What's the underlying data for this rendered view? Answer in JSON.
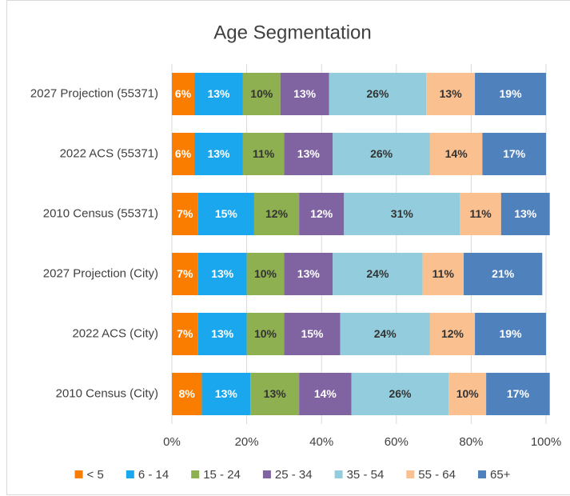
{
  "chart_data": {
    "type": "stacked-bar-horizontal",
    "title": "Age Segmentation",
    "categories": [
      "2027 Projection (55371)",
      "2022 ACS (55371)",
      "2010 Census (55371)",
      "2027 Projection (City)",
      "2022 ACS (City)",
      "2010 Census (City)"
    ],
    "series": [
      {
        "name": "< 5",
        "color": "#fa7d00",
        "label_color": "#ffffff",
        "values": [
          6,
          6,
          7,
          7,
          7,
          8
        ],
        "value_labels": [
          "6%",
          "6%",
          "7%",
          "7%",
          "7%",
          "8%"
        ]
      },
      {
        "name": "6 - 14",
        "color": "#1aa7ee",
        "label_color": "#ffffff",
        "values": [
          13,
          13,
          15,
          13,
          13,
          13
        ],
        "value_labels": [
          "13%",
          "13%",
          "15%",
          "13%",
          "13%",
          "13%"
        ]
      },
      {
        "name": "15 - 24",
        "color": "#8fb050",
        "label_color": "#333333",
        "values": [
          10,
          11,
          12,
          10,
          10,
          13
        ],
        "value_labels": [
          "10%",
          "11%",
          "12%",
          "10%",
          "10%",
          "13%"
        ]
      },
      {
        "name": "25 - 34",
        "color": "#8064a2",
        "label_color": "#ffffff",
        "values": [
          13,
          13,
          12,
          13,
          15,
          14
        ],
        "value_labels": [
          "13%",
          "13%",
          "12%",
          "13%",
          "15%",
          "14%"
        ]
      },
      {
        "name": "35 - 54",
        "color": "#93cddd",
        "label_color": "#333333",
        "values": [
          26,
          26,
          31,
          24,
          24,
          26
        ],
        "value_labels": [
          "26%",
          "26%",
          "31%",
          "24%",
          "24%",
          "26%"
        ]
      },
      {
        "name": "55 - 64",
        "color": "#fac090",
        "label_color": "#333333",
        "values": [
          13,
          14,
          11,
          11,
          12,
          10
        ],
        "value_labels": [
          "13%",
          "14%",
          "11%",
          "11%",
          "12%",
          "10%"
        ]
      },
      {
        "name": "65+",
        "color": "#4f81bd",
        "label_color": "#ffffff",
        "values": [
          19,
          17,
          13,
          21,
          19,
          17
        ],
        "value_labels": [
          "19%",
          "17%",
          "13%",
          "21%",
          "19%",
          "17%"
        ]
      }
    ],
    "xlim": [
      0,
      100
    ],
    "xticks": [
      {
        "value": 0,
        "label": "0%"
      },
      {
        "value": 20,
        "label": "20%"
      },
      {
        "value": 40,
        "label": "40%"
      },
      {
        "value": 60,
        "label": "60%"
      },
      {
        "value": 80,
        "label": "80%"
      },
      {
        "value": 100,
        "label": "100%"
      }
    ],
    "grid": true,
    "legend": "bottom"
  }
}
